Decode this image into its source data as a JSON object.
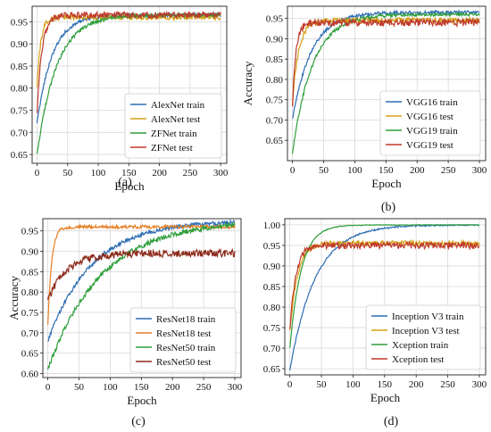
{
  "chart_data": [
    {
      "panel_label": "(a)",
      "type": "line",
      "xlabel": "Epoch",
      "ylabel": "",
      "xlim": [
        -8,
        310
      ],
      "ylim": [
        0.63,
        0.985
      ],
      "xticks": [
        0,
        50,
        100,
        150,
        200,
        250,
        300
      ],
      "yticks": [
        0.65,
        0.7,
        0.75,
        0.8,
        0.85,
        0.9,
        0.95
      ],
      "grid": true,
      "legend_position": "lower-right",
      "series": [
        {
          "name": "AlexNet train",
          "color": "#2e6db4",
          "start": 0.72,
          "final": 0.965,
          "rate": 25,
          "noise": 0.004
        },
        {
          "name": "AlexNet test",
          "color": "#d4a017",
          "start": 0.8,
          "final": 0.96,
          "rate": 6,
          "noise": 0.006
        },
        {
          "name": "ZFNet train",
          "color": "#2e9e3a",
          "start": 0.65,
          "final": 0.965,
          "rate": 32,
          "noise": 0.004
        },
        {
          "name": "ZFNet test",
          "color": "#c0392b",
          "start": 0.74,
          "final": 0.965,
          "rate": 8,
          "noise": 0.007
        }
      ]
    },
    {
      "panel_label": "(b)",
      "type": "line",
      "xlabel": "Epoch",
      "ylabel": "Accuracy",
      "xlim": [
        -8,
        310
      ],
      "ylim": [
        0.6,
        0.98
      ],
      "xticks": [
        0,
        50,
        100,
        150,
        200,
        250,
        300
      ],
      "yticks": [
        0.65,
        0.7,
        0.75,
        0.8,
        0.85,
        0.9,
        0.95
      ],
      "grid": true,
      "legend_position": "lower-right",
      "series": [
        {
          "name": "VGG16 train",
          "color": "#2e6db4",
          "start": 0.7,
          "final": 0.965,
          "rate": 30,
          "noise": 0.004
        },
        {
          "name": "VGG16 test",
          "color": "#d4a017",
          "start": 0.74,
          "final": 0.945,
          "rate": 10,
          "noise": 0.007
        },
        {
          "name": "VGG19 train",
          "color": "#2e9e3a",
          "start": 0.62,
          "final": 0.96,
          "rate": 32,
          "noise": 0.004
        },
        {
          "name": "VGG19 test",
          "color": "#c0392b",
          "start": 0.74,
          "final": 0.94,
          "rate": 6,
          "noise": 0.009
        }
      ]
    },
    {
      "panel_label": "(c)",
      "type": "line",
      "xlabel": "Epoch",
      "ylabel": "Accuracy",
      "xlim": [
        -8,
        310
      ],
      "ylim": [
        0.59,
        0.98
      ],
      "xticks": [
        0,
        50,
        100,
        150,
        200,
        250,
        300
      ],
      "yticks": [
        0.6,
        0.65,
        0.7,
        0.75,
        0.8,
        0.85,
        0.9,
        0.95
      ],
      "grid": true,
      "legend_position": "lower-right",
      "series": [
        {
          "name": "ResNet18 train",
          "color": "#2e6db4",
          "start": 0.68,
          "final": 0.975,
          "rate": 70,
          "noise": 0.005
        },
        {
          "name": "ResNet18 test",
          "color": "#e67e22",
          "start": 0.72,
          "final": 0.96,
          "rate": 6,
          "noise": 0.004
        },
        {
          "name": "ResNet50 train",
          "color": "#2e9e3a",
          "start": 0.61,
          "final": 0.975,
          "rate": 85,
          "noise": 0.006
        },
        {
          "name": "ResNet50 test",
          "color": "#8e2c1c",
          "start": 0.78,
          "final": 0.895,
          "rate": 30,
          "noise": 0.009
        }
      ]
    },
    {
      "panel_label": "(d)",
      "type": "line",
      "xlabel": "Epoch",
      "ylabel": "",
      "xlim": [
        -8,
        310
      ],
      "ylim": [
        0.635,
        1.015
      ],
      "xticks": [
        0,
        50,
        100,
        150,
        200,
        250,
        300
      ],
      "yticks": [
        0.65,
        0.7,
        0.75,
        0.8,
        0.85,
        0.9,
        0.95,
        1.0
      ],
      "grid": true,
      "legend_position": "lower-right",
      "series": [
        {
          "name": "Inception V3 train",
          "color": "#2e6db4",
          "start": 0.645,
          "final": 1.0,
          "rate": 40,
          "noise": 0.002
        },
        {
          "name": "Inception V3 test",
          "color": "#d4a017",
          "start": 0.74,
          "final": 0.955,
          "rate": 12,
          "noise": 0.006
        },
        {
          "name": "Xception train",
          "color": "#2e9e3a",
          "start": 0.7,
          "final": 1.0,
          "rate": 18,
          "noise": 0.001
        },
        {
          "name": "Xception test",
          "color": "#c0392b",
          "start": 0.74,
          "final": 0.95,
          "rate": 9,
          "noise": 0.008
        }
      ]
    }
  ]
}
